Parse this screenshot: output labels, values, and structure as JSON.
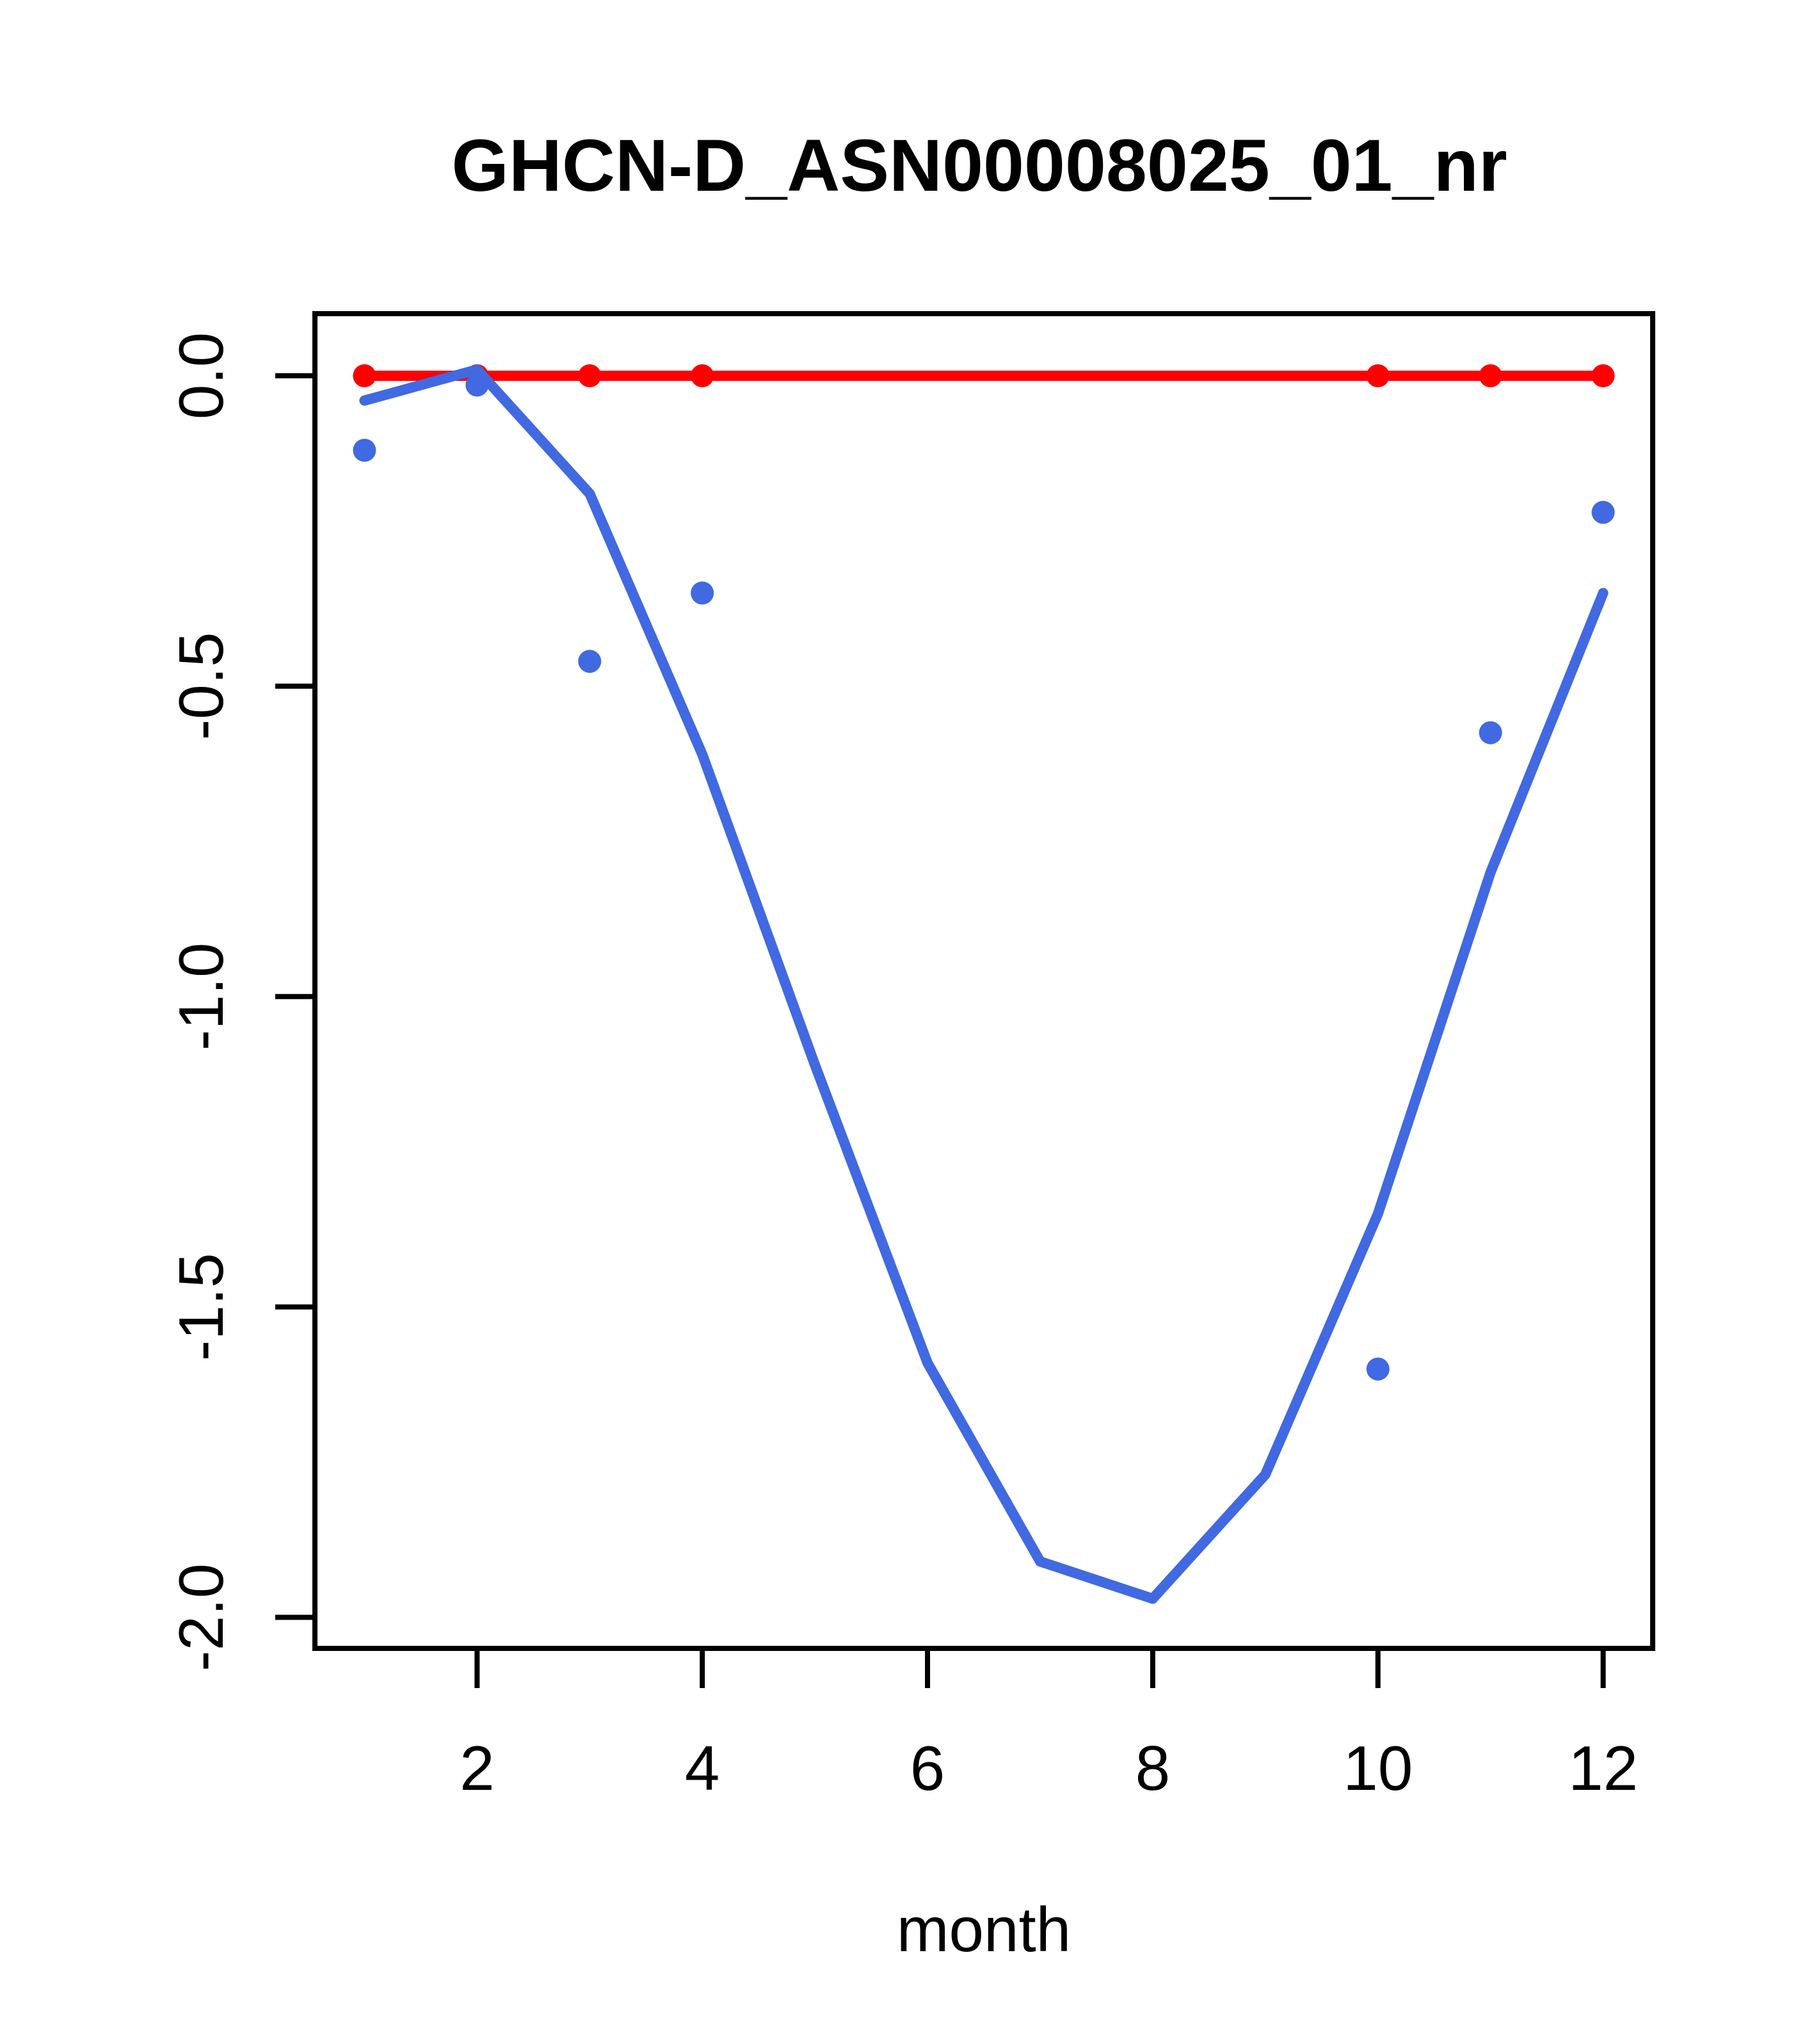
{
  "figure": {
    "background": "#ffffff",
    "axis_color": "#000000"
  },
  "colors": {
    "reference_red": "#ff0000",
    "series_blue": "#4169e1",
    "text": "#000000",
    "background": "#ffffff"
  },
  "chart_data": {
    "type": "line",
    "title": "GHCN-D_ASN00008025_01_nr",
    "xlabel": "month",
    "ylabel": "",
    "xlim": [
      0.56,
      12.44
    ],
    "ylim": [
      -2.05,
      0.1
    ],
    "xticks": [
      2,
      4,
      6,
      8,
      10,
      12
    ],
    "xtick_labels": [
      "2",
      "4",
      "6",
      "8",
      "10",
      "12"
    ],
    "yticks": [
      0.0,
      -0.5,
      -1.0,
      -1.5,
      -2.0
    ],
    "ytick_labels": [
      "0.0",
      "-0.5",
      "-1.0",
      "-1.5",
      "-2.0"
    ],
    "grid": false,
    "legend": "none",
    "series": [
      {
        "name": "zero-reference",
        "color": "#ff0000",
        "line": {
          "x": [
            1,
            12
          ],
          "y": [
            0,
            0
          ]
        },
        "points": {
          "x": [
            1,
            2,
            3,
            4,
            10,
            11,
            12
          ],
          "y": [
            0,
            0,
            0,
            0,
            0,
            0,
            0
          ]
        }
      },
      {
        "name": "fitted-curve",
        "color": "#4169e1",
        "line": {
          "x": [
            1,
            2,
            3,
            4,
            5,
            6,
            7,
            8,
            9,
            10,
            11,
            12
          ],
          "y": [
            -0.04,
            0.01,
            -0.19,
            -0.61,
            -1.11,
            -1.59,
            -1.91,
            -1.97,
            -1.77,
            -1.35,
            -0.8,
            -0.35
          ]
        }
      },
      {
        "name": "observed-points",
        "color": "#4169e1",
        "points": {
          "x": [
            1,
            2,
            3,
            4,
            10,
            11,
            12
          ],
          "y": [
            -0.12,
            -0.015,
            -0.46,
            -0.35,
            -1.6,
            -0.575,
            -0.22
          ]
        }
      }
    ]
  }
}
